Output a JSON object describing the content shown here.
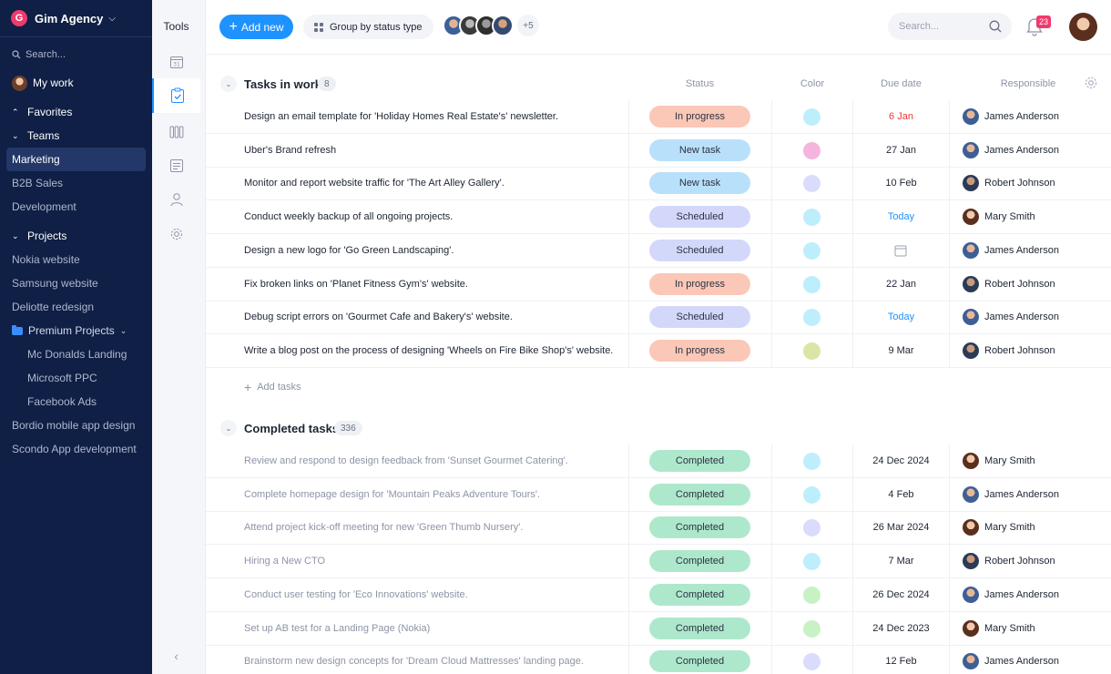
{
  "brand": {
    "logo_letter": "G",
    "name": "Gim Agency"
  },
  "nav": {
    "search_placeholder": "Search...",
    "my_work": "My work",
    "favorites": "Favorites",
    "teams": {
      "label": "Teams",
      "items": [
        "Marketing",
        "B2B Sales",
        "Development"
      ],
      "active": "Marketing"
    },
    "projects": {
      "label": "Projects",
      "items": [
        "Nokia website",
        "Samsung website",
        "Deliotte redesign"
      ],
      "folder": {
        "label": "Premium Projects",
        "items": [
          "Mc Donalds Landing",
          "Microsoft PPC",
          "Facebook Ads"
        ]
      },
      "more": [
        "Bordio mobile app design",
        "Scondo App development"
      ]
    }
  },
  "tools": {
    "title": "Tools",
    "icons": [
      "calendar-icon",
      "task-list-icon",
      "board-icon",
      "notes-icon",
      "user-icon",
      "gear-icon"
    ],
    "active": "task-list-icon"
  },
  "topbar": {
    "add_new": "Add new",
    "group_by": "Group by status type",
    "extra_members": "+5",
    "search_placeholder": "Search...",
    "notifications": "23"
  },
  "columns": {
    "status": "Status",
    "color": "Color",
    "due": "Due date",
    "responsible": "Responsible"
  },
  "colors": {
    "accent": "#1e92ff",
    "nav_bg": "#0f1f45",
    "in_progress": "#fbc7b6",
    "new_task": "#b9e0fb",
    "scheduled": "#d3d8fb",
    "completed": "#aee8cc"
  },
  "groups": [
    {
      "title": "Tasks in work",
      "count": "8",
      "add_tasks": "Add tasks",
      "rows": [
        {
          "task": "Design an email template for 'Holiday Homes Real Estate's' newsletter.",
          "status": "In progress",
          "color": "#bdeefc",
          "due": "6 Jan",
          "due_style": "red",
          "person": "James Anderson"
        },
        {
          "task": "Uber's Brand refresh",
          "status": "New task",
          "color": "#f4b4de",
          "due": "27 Jan",
          "due_style": "",
          "person": "James Anderson"
        },
        {
          "task": "Monitor and report website traffic for 'The Art Alley Gallery'.",
          "status": "New task",
          "color": "#d9dcfa",
          "due": "10 Feb",
          "due_style": "",
          "person": "Robert Johnson"
        },
        {
          "task": "Conduct weekly backup of all ongoing projects.",
          "status": "Scheduled",
          "color": "#bdeefc",
          "due": "Today",
          "due_style": "blue",
          "person": "Mary Smith"
        },
        {
          "task": "Design a new logo for 'Go Green Landscaping'.",
          "status": "Scheduled",
          "color": "#bdeefc",
          "due": "",
          "due_style": "icon",
          "person": "James Anderson"
        },
        {
          "task": "Fix broken links on 'Planet Fitness Gym's' website.",
          "status": "In progress",
          "color": "#bdeefc",
          "due": "22 Jan",
          "due_style": "",
          "person": "Robert Johnson"
        },
        {
          "task": "Debug script errors on 'Gourmet Cafe and Bakery's' website.",
          "status": "Scheduled",
          "color": "#bdeefc",
          "due": "Today",
          "due_style": "blue",
          "person": "James Anderson"
        },
        {
          "task": "Write a blog post on the process of designing 'Wheels on Fire Bike Shop's' website.",
          "status": "In progress",
          "color": "#d9e6a6",
          "due": "9 Mar",
          "due_style": "",
          "person": "Robert Johnson"
        }
      ]
    },
    {
      "title": "Completed tasks",
      "count": "336",
      "rows": [
        {
          "task": "Review and respond to design feedback from 'Sunset Gourmet Catering'.",
          "status": "Completed",
          "color": "#bdeefc",
          "due": "24 Dec 2024",
          "due_style": "",
          "person": "Mary Smith"
        },
        {
          "task": "Complete homepage design for 'Mountain Peaks Adventure Tours'.",
          "status": "Completed",
          "color": "#bdeefc",
          "due": "4 Feb",
          "due_style": "",
          "person": "James Anderson"
        },
        {
          "task": "Attend project kick-off meeting for new 'Green Thumb Nursery'.",
          "status": "Completed",
          "color": "#d9dcfa",
          "due": "26 Mar 2024",
          "due_style": "",
          "person": "Mary Smith"
        },
        {
          "task": "Hiring a New CTO",
          "status": "Completed",
          "color": "#bdeefc",
          "due": "7 Mar",
          "due_style": "",
          "person": "Robert Johnson"
        },
        {
          "task": "Conduct user testing for 'Eco Innovations' website.",
          "status": "Completed",
          "color": "#c8f2c4",
          "due": "26 Dec 2024",
          "due_style": "",
          "person": "James Anderson"
        },
        {
          "task": "Set up AB test for a Landing Page (Nokia)",
          "status": "Completed",
          "color": "#c8f2c4",
          "due": "24 Dec 2023",
          "due_style": "",
          "person": "Mary Smith"
        },
        {
          "task": "Brainstorm new design concepts for 'Dream Cloud Mattresses' landing page.",
          "status": "Completed",
          "color": "#d9dcfa",
          "due": "12 Feb",
          "due_style": "",
          "person": "James Anderson"
        }
      ]
    }
  ]
}
